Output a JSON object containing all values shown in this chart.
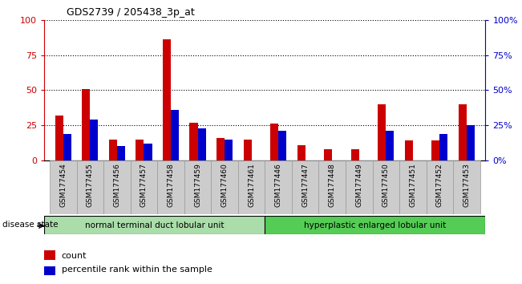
{
  "title": "GDS2739 / 205438_3p_at",
  "categories": [
    "GSM177454",
    "GSM177455",
    "GSM177456",
    "GSM177457",
    "GSM177458",
    "GSM177459",
    "GSM177460",
    "GSM177461",
    "GSM177446",
    "GSM177447",
    "GSM177448",
    "GSM177449",
    "GSM177450",
    "GSM177451",
    "GSM177452",
    "GSM177453"
  ],
  "count_values": [
    32,
    51,
    15,
    15,
    86,
    27,
    16,
    15,
    26,
    11,
    8,
    8,
    40,
    14,
    14,
    40
  ],
  "percentile_values": [
    19,
    29,
    10,
    12,
    36,
    23,
    15,
    0,
    21,
    0,
    0,
    0,
    21,
    0,
    19,
    25
  ],
  "group1_label": "normal terminal duct lobular unit",
  "group2_label": "hyperplastic enlarged lobular unit",
  "disease_state_label": "disease state",
  "legend_count": "count",
  "legend_percentile": "percentile rank within the sample",
  "bar_color_red": "#cc0000",
  "bar_color_blue": "#0000cc",
  "group1_color": "#aaddaa",
  "group2_color": "#55cc55",
  "ylim": [
    0,
    100
  ],
  "yticks": [
    0,
    25,
    50,
    75,
    100
  ],
  "bar_width": 0.3,
  "axis_label_color_left": "#cc0000",
  "axis_label_color_right": "#0000cc",
  "tick_label_bg": "#cccccc",
  "white_bg": "#ffffff"
}
